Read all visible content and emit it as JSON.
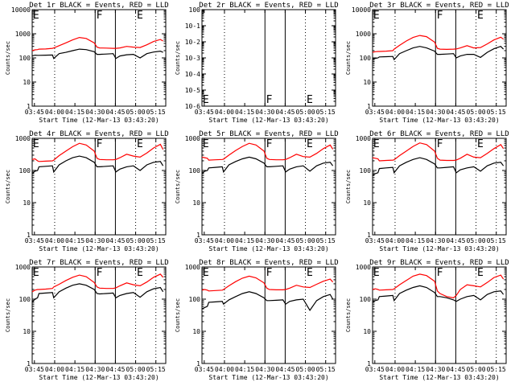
{
  "colors": {
    "events": "#000000",
    "lld": "#ff0000",
    "axis": "#000000",
    "background": "#ffffff"
  },
  "shared": {
    "xlabel": "Start Time (12-Mar-13 03:43:20)",
    "ylabel": "Counts/sec",
    "x_tick_labels": [
      "03:45",
      "04:00",
      "04:15",
      "04:30",
      "04:45",
      "05:00",
      "05:15"
    ],
    "x_tick_minutes": [
      1.67,
      16.67,
      31.67,
      46.67,
      61.67,
      76.67,
      91.67
    ],
    "dotted_lines_minutes": [
      16.67,
      76.67,
      91.67
    ],
    "solid_lines_minutes": [
      46.67,
      61.67
    ],
    "flags": [
      {
        "text": "E",
        "minute": 0.5
      },
      {
        "text": "F",
        "minute": 47.5
      },
      {
        "text": "E",
        "minute": 77.5
      }
    ],
    "xlim_minutes": [
      0,
      99
    ]
  },
  "chart_data": [
    {
      "type": "line",
      "title": "Det 1r BLACK = Events, RED = LLD",
      "ylim": [
        1,
        10000
      ],
      "ylog": true,
      "y_tick_labels": [
        "1",
        "10",
        "100",
        "1000",
        "10000"
      ],
      "x": [
        0,
        2,
        4,
        5,
        10,
        15,
        16,
        20,
        25,
        30,
        35,
        40,
        46,
        48,
        50,
        55,
        60,
        62,
        65,
        70,
        75,
        80,
        85,
        90,
        95,
        97
      ],
      "series": [
        {
          "name": "Events",
          "values": [
            120,
            130,
            128,
            128,
            130,
            132,
            95,
            150,
            170,
            200,
            230,
            220,
            180,
            140,
            140,
            145,
            150,
            95,
            120,
            135,
            140,
            100,
            150,
            175,
            190,
            170
          ]
        },
        {
          "name": "LLD",
          "values": [
            200,
            215,
            220,
            230,
            235,
            250,
            260,
            320,
            420,
            560,
            700,
            640,
            420,
            280,
            260,
            255,
            250,
            250,
            260,
            300,
            280,
            270,
            350,
            480,
            580,
            500
          ]
        }
      ]
    },
    {
      "type": "line",
      "title": "Det 2r BLACK = Events, RED = LLD",
      "ylim": [
        1e-06,
        1
      ],
      "ylog": true,
      "y_tick_labels": [
        "10-6",
        "10-5",
        "10-4",
        "10-3",
        "10-2",
        "10-1",
        "100"
      ],
      "x": [],
      "series": []
    },
    {
      "type": "line",
      "title": "Det 3r BLACK = Events, RED = LLD",
      "ylim": [
        1,
        10000
      ],
      "ylog": true,
      "y_tick_labels": [
        "1",
        "10",
        "100",
        "1000",
        "10000"
      ],
      "x": [
        0,
        2,
        4,
        5,
        10,
        15,
        16,
        20,
        25,
        30,
        35,
        40,
        46,
        48,
        50,
        55,
        60,
        62,
        65,
        70,
        75,
        80,
        85,
        90,
        95,
        97
      ],
      "series": [
        {
          "name": "Events",
          "values": [
            90,
            95,
            100,
            110,
            112,
            115,
            85,
            150,
            200,
            260,
            300,
            260,
            190,
            140,
            140,
            145,
            150,
            100,
            120,
            140,
            140,
            105,
            170,
            240,
            300,
            230
          ]
        },
        {
          "name": "LLD",
          "values": [
            170,
            180,
            185,
            185,
            190,
            200,
            230,
            330,
            500,
            700,
            850,
            760,
            450,
            250,
            230,
            225,
            230,
            235,
            260,
            320,
            260,
            270,
            380,
            560,
            720,
            600
          ]
        }
      ]
    },
    {
      "type": "line",
      "title": "Det 4r BLACK = Events, RED = LLD",
      "ylim": [
        1,
        1000
      ],
      "ylog": true,
      "y_tick_labels": [
        "1",
        "10",
        "100",
        "1000"
      ],
      "x": [
        0,
        2,
        4,
        5,
        10,
        15,
        16,
        20,
        25,
        30,
        35,
        40,
        46,
        48,
        50,
        55,
        60,
        62,
        65,
        70,
        75,
        80,
        85,
        90,
        95,
        97
      ],
      "series": [
        {
          "name": "Events",
          "values": [
            80,
            95,
            100,
            130,
            135,
            140,
            90,
            150,
            200,
            250,
            280,
            250,
            180,
            130,
            130,
            135,
            140,
            90,
            110,
            130,
            140,
            100,
            150,
            180,
            190,
            140
          ]
        },
        {
          "name": "LLD",
          "values": [
            220,
            230,
            200,
            190,
            195,
            200,
            210,
            290,
            400,
            550,
            700,
            620,
            400,
            240,
            220,
            215,
            215,
            220,
            250,
            320,
            280,
            260,
            350,
            500,
            650,
            450
          ]
        }
      ]
    },
    {
      "type": "line",
      "title": "Det 5r BLACK = Events, RED = LLD",
      "ylim": [
        1,
        1000
      ],
      "ylog": true,
      "y_tick_labels": [
        "1",
        "10",
        "100",
        "1000"
      ],
      "x": [
        0,
        2,
        4,
        5,
        10,
        15,
        16,
        20,
        25,
        30,
        35,
        40,
        46,
        48,
        50,
        55,
        60,
        62,
        65,
        70,
        75,
        80,
        85,
        90,
        95,
        97
      ],
      "series": [
        {
          "name": "Events",
          "values": [
            80,
            95,
            100,
            120,
            125,
            130,
            90,
            150,
            190,
            230,
            260,
            230,
            170,
            130,
            130,
            135,
            140,
            90,
            110,
            130,
            140,
            95,
            140,
            170,
            180,
            140
          ]
        },
        {
          "name": "LLD",
          "values": [
            260,
            250,
            240,
            210,
            215,
            220,
            225,
            300,
            420,
            560,
            700,
            620,
            400,
            240,
            220,
            215,
            215,
            220,
            250,
            320,
            270,
            260,
            340,
            480,
            620,
            460
          ]
        }
      ]
    },
    {
      "type": "line",
      "title": "Det 6r BLACK = Events, RED = LLD",
      "ylim": [
        1,
        1000
      ],
      "ylog": true,
      "y_tick_labels": [
        "1",
        "10",
        "100",
        "1000"
      ],
      "x": [
        0,
        2,
        4,
        5,
        10,
        15,
        16,
        20,
        25,
        30,
        35,
        40,
        46,
        48,
        50,
        55,
        60,
        62,
        65,
        70,
        75,
        80,
        85,
        90,
        95,
        97
      ],
      "series": [
        {
          "name": "Events",
          "values": [
            70,
            80,
            85,
            115,
            120,
            125,
            85,
            140,
            180,
            220,
            250,
            220,
            160,
            120,
            120,
            125,
            130,
            85,
            105,
            120,
            130,
            95,
            140,
            170,
            180,
            140
          ]
        },
        {
          "name": "LLD",
          "values": [
            250,
            240,
            230,
            200,
            205,
            210,
            215,
            290,
            400,
            560,
            720,
            640,
            400,
            240,
            210,
            205,
            205,
            210,
            240,
            320,
            260,
            250,
            340,
            480,
            640,
            480
          ]
        }
      ]
    },
    {
      "type": "line",
      "title": "Det 7r BLACK = Events, RED = LLD",
      "ylim": [
        1,
        1000
      ],
      "ylog": true,
      "y_tick_labels": [
        "1",
        "10",
        "100",
        "1000"
      ],
      "x": [
        0,
        2,
        4,
        5,
        10,
        15,
        16,
        20,
        25,
        30,
        35,
        40,
        46,
        48,
        50,
        55,
        60,
        62,
        65,
        70,
        75,
        80,
        85,
        90,
        95,
        97
      ],
      "series": [
        {
          "name": "Events",
          "values": [
            80,
            100,
            110,
            150,
            155,
            160,
            110,
            170,
            220,
            270,
            300,
            270,
            200,
            150,
            145,
            150,
            155,
            110,
            130,
            150,
            160,
            115,
            170,
            210,
            230,
            170
          ]
        },
        {
          "name": "LLD",
          "values": [
            170,
            190,
            200,
            200,
            205,
            215,
            240,
            290,
            380,
            480,
            560,
            500,
            330,
            240,
            220,
            215,
            215,
            225,
            260,
            320,
            280,
            260,
            340,
            480,
            600,
            480
          ]
        }
      ]
    },
    {
      "type": "line",
      "title": "Det 8r BLACK = Events, RED = LLD",
      "ylim": [
        1,
        1000
      ],
      "ylog": true,
      "y_tick_labels": [
        "1",
        "10",
        "100",
        "1000"
      ],
      "x": [
        0,
        2,
        4,
        5,
        10,
        15,
        16,
        20,
        25,
        30,
        35,
        40,
        46,
        48,
        50,
        55,
        60,
        62,
        65,
        70,
        75,
        80,
        85,
        90,
        95,
        97
      ],
      "series": [
        {
          "name": "Events",
          "values": [
            50,
            55,
            60,
            80,
            82,
            85,
            70,
            95,
            120,
            150,
            170,
            150,
            110,
            90,
            90,
            92,
            95,
            70,
            85,
            95,
            100,
            45,
            90,
            120,
            140,
            100
          ]
        },
        {
          "name": "LLD",
          "values": [
            190,
            200,
            190,
            180,
            185,
            190,
            200,
            260,
            350,
            450,
            520,
            460,
            320,
            220,
            200,
            195,
            195,
            200,
            220,
            270,
            240,
            230,
            290,
            360,
            420,
            340
          ]
        }
      ]
    },
    {
      "type": "line",
      "title": "Det 9r BLACK = Events, RED = LLD",
      "ylim": [
        1,
        1000
      ],
      "ylog": true,
      "y_tick_labels": [
        "1",
        "10",
        "100",
        "1000"
      ],
      "x": [
        0,
        2,
        4,
        5,
        10,
        15,
        16,
        20,
        25,
        30,
        35,
        40,
        46,
        48,
        50,
        55,
        60,
        62,
        65,
        70,
        75,
        80,
        85,
        90,
        95,
        97
      ],
      "series": [
        {
          "name": "Events",
          "values": [
            80,
            90,
            95,
            120,
            125,
            130,
            90,
            150,
            190,
            230,
            260,
            230,
            160,
            120,
            120,
            110,
            95,
            85,
            100,
            120,
            130,
            95,
            140,
            170,
            180,
            140
          ]
        },
        {
          "name": "LLD",
          "values": [
            200,
            210,
            200,
            190,
            195,
            200,
            210,
            280,
            380,
            520,
            600,
            540,
            360,
            180,
            150,
            120,
            110,
            130,
            200,
            280,
            260,
            240,
            330,
            470,
            560,
            420
          ]
        }
      ]
    }
  ]
}
